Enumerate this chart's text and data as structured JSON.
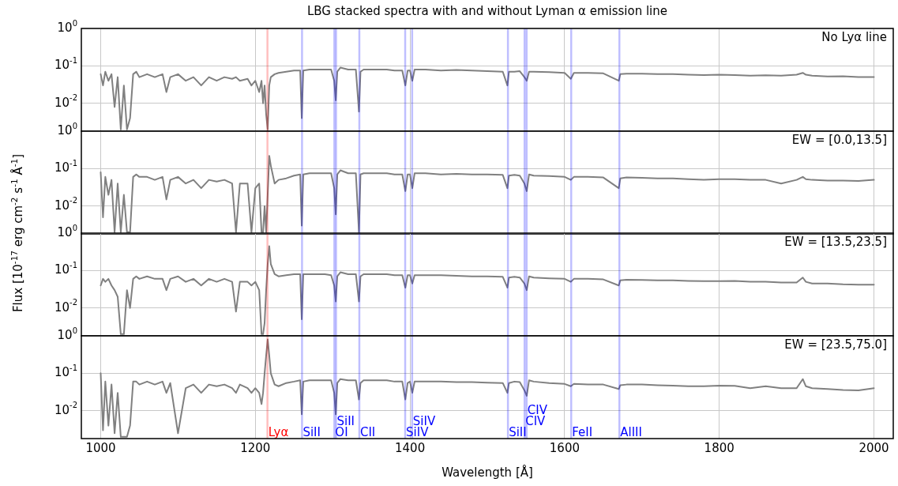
{
  "chart_data": [
    {
      "type": "line",
      "title": "LBG stacked spectra with and without Lyman α emission line",
      "ylabel": "Flux [10$^{-17}$ erg cm$^{-2}$ s$^{-1}$ Å$^{-1}$]",
      "annotations": [
        "No Lyα line"
      ],
      "tick_labels": "y",
      "log": true,
      "grid": true,
      "marker": "none",
      "xlim": [
        975,
        2025
      ],
      "xticks": [
        1000,
        1200,
        1400,
        1600,
        1800,
        2000
      ],
      "ylim": [
        0.0018,
        1
      ],
      "yticks": [
        {
          "value": 1,
          "label": "10$^{0}$"
        },
        {
          "value": 0.1,
          "label": "10$^{-1}$"
        },
        {
          "value": 0.01,
          "label": "10$^{-2}$"
        }
      ],
      "x": [
        1000,
        1003,
        1006,
        1010,
        1014,
        1018,
        1022,
        1026,
        1030,
        1034,
        1038,
        1042,
        1046,
        1050,
        1060,
        1070,
        1080,
        1085,
        1090,
        1100,
        1110,
        1120,
        1130,
        1140,
        1150,
        1160,
        1170,
        1175,
        1180,
        1190,
        1195,
        1200,
        1205,
        1208,
        1210,
        1212,
        1214,
        1216,
        1218,
        1220,
        1225,
        1230,
        1240,
        1250,
        1258,
        1260,
        1262,
        1270,
        1280,
        1290,
        1298,
        1302,
        1304,
        1306,
        1310,
        1320,
        1330,
        1334,
        1336,
        1340,
        1350,
        1360,
        1370,
        1380,
        1390,
        1394,
        1397,
        1400,
        1403,
        1406,
        1420,
        1440,
        1460,
        1480,
        1500,
        1520,
        1526,
        1528,
        1535,
        1542,
        1548,
        1551,
        1554,
        1560,
        1580,
        1600,
        1608,
        1612,
        1630,
        1650,
        1670,
        1672,
        1680,
        1700,
        1720,
        1740,
        1760,
        1780,
        1800,
        1820,
        1840,
        1860,
        1880,
        1900,
        1908,
        1912,
        1920,
        1940,
        1960,
        1980,
        2000
      ],
      "series": [
        {
          "color": "#808080",
          "values": [
            0.06,
            0.03,
            0.07,
            0.04,
            0.06,
            0.008,
            0.05,
            0.002,
            0.03,
            0.002,
            0.004,
            0.06,
            0.07,
            0.05,
            0.06,
            0.05,
            0.06,
            0.02,
            0.05,
            0.06,
            0.04,
            0.05,
            0.03,
            0.05,
            0.04,
            0.05,
            0.045,
            0.05,
            0.04,
            0.045,
            0.03,
            0.04,
            0.02,
            0.04,
            0.01,
            0.03,
            0.005,
            0.002,
            0.03,
            0.05,
            0.06,
            0.065,
            0.07,
            0.075,
            0.075,
            0.004,
            0.075,
            0.08,
            0.08,
            0.08,
            0.08,
            0.04,
            0.012,
            0.07,
            0.09,
            0.08,
            0.08,
            0.006,
            0.07,
            0.08,
            0.08,
            0.08,
            0.08,
            0.075,
            0.075,
            0.03,
            0.075,
            0.075,
            0.04,
            0.08,
            0.08,
            0.075,
            0.078,
            0.075,
            0.072,
            0.07,
            0.03,
            0.07,
            0.07,
            0.072,
            0.05,
            0.04,
            0.07,
            0.07,
            0.068,
            0.065,
            0.045,
            0.065,
            0.065,
            0.063,
            0.04,
            0.06,
            0.062,
            0.062,
            0.06,
            0.06,
            0.058,
            0.057,
            0.058,
            0.057,
            0.055,
            0.056,
            0.055,
            0.058,
            0.065,
            0.058,
            0.055,
            0.052,
            0.053,
            0.05,
            0.05
          ]
        }
      ],
      "ref_lines": [
        {
          "axis": "x",
          "value": 1215.67,
          "color": "#ff0000"
        },
        {
          "axis": "x",
          "value": 1260.4,
          "color": "#0000ff"
        },
        {
          "axis": "x",
          "value": 1302.2,
          "color": "#0000ff"
        },
        {
          "axis": "x",
          "value": 1304.4,
          "color": "#0000ff"
        },
        {
          "axis": "x",
          "value": 1334.5,
          "color": "#0000ff"
        },
        {
          "axis": "x",
          "value": 1393.8,
          "color": "#0000ff"
        },
        {
          "axis": "x",
          "value": 1402.8,
          "color": "#0000ff"
        },
        {
          "axis": "x",
          "value": 1526.7,
          "color": "#0000ff"
        },
        {
          "axis": "x",
          "value": 1548.2,
          "color": "#0000ff"
        },
        {
          "axis": "x",
          "value": 1550.8,
          "color": "#0000ff"
        },
        {
          "axis": "x",
          "value": 1608.5,
          "color": "#0000ff"
        },
        {
          "axis": "x",
          "value": 1670.8,
          "color": "#0000ff"
        }
      ]
    },
    {
      "type": "line",
      "annotations": [
        "EW = [0.0,13.5]"
      ],
      "tick_labels": "y",
      "log": true,
      "grid": true,
      "marker": "none",
      "xlim": [
        975,
        2025
      ],
      "xticks": [
        1000,
        1200,
        1400,
        1600,
        1800,
        2000
      ],
      "ylim": [
        0.0018,
        1
      ],
      "yticks": [
        {
          "value": 1,
          "label": "10$^{0}$"
        },
        {
          "value": 0.1,
          "label": "10$^{-1}$"
        },
        {
          "value": 0.01,
          "label": "10$^{-2}$"
        }
      ],
      "x": [
        1000,
        1003,
        1006,
        1010,
        1014,
        1018,
        1022,
        1026,
        1030,
        1034,
        1038,
        1042,
        1046,
        1050,
        1060,
        1070,
        1080,
        1085,
        1090,
        1100,
        1110,
        1120,
        1130,
        1140,
        1150,
        1160,
        1170,
        1175,
        1180,
        1190,
        1195,
        1200,
        1205,
        1208,
        1210,
        1212,
        1214,
        1216,
        1218,
        1220,
        1225,
        1230,
        1240,
        1250,
        1258,
        1260,
        1262,
        1270,
        1280,
        1290,
        1298,
        1302,
        1304,
        1306,
        1310,
        1320,
        1330,
        1334,
        1336,
        1340,
        1350,
        1360,
        1370,
        1380,
        1390,
        1394,
        1397,
        1400,
        1403,
        1406,
        1420,
        1440,
        1460,
        1480,
        1500,
        1520,
        1526,
        1528,
        1535,
        1542,
        1548,
        1551,
        1554,
        1560,
        1580,
        1600,
        1608,
        1612,
        1630,
        1650,
        1670,
        1672,
        1680,
        1700,
        1720,
        1740,
        1760,
        1780,
        1800,
        1820,
        1840,
        1860,
        1880,
        1900,
        1908,
        1912,
        1920,
        1940,
        1960,
        1980,
        2000
      ],
      "series": [
        {
          "color": "#808080",
          "values": [
            0.08,
            0.005,
            0.06,
            0.02,
            0.05,
            0.002,
            0.04,
            0.002,
            0.02,
            0.002,
            0.002,
            0.06,
            0.07,
            0.06,
            0.06,
            0.05,
            0.06,
            0.015,
            0.05,
            0.06,
            0.04,
            0.05,
            0.03,
            0.05,
            0.045,
            0.05,
            0.04,
            0.002,
            0.04,
            0.04,
            0.002,
            0.03,
            0.04,
            0.002,
            0.002,
            0.01,
            0.002,
            0.02,
            0.22,
            0.12,
            0.04,
            0.05,
            0.055,
            0.065,
            0.07,
            0.003,
            0.07,
            0.075,
            0.075,
            0.075,
            0.075,
            0.03,
            0.006,
            0.07,
            0.09,
            0.075,
            0.075,
            0.002,
            0.07,
            0.075,
            0.075,
            0.075,
            0.075,
            0.07,
            0.07,
            0.025,
            0.07,
            0.07,
            0.03,
            0.075,
            0.075,
            0.07,
            0.072,
            0.07,
            0.07,
            0.068,
            0.03,
            0.065,
            0.068,
            0.065,
            0.04,
            0.025,
            0.07,
            0.065,
            0.063,
            0.06,
            0.05,
            0.06,
            0.06,
            0.058,
            0.03,
            0.055,
            0.058,
            0.057,
            0.055,
            0.055,
            0.052,
            0.05,
            0.052,
            0.052,
            0.05,
            0.05,
            0.04,
            0.05,
            0.06,
            0.052,
            0.05,
            0.048,
            0.048,
            0.047,
            0.05
          ]
        }
      ],
      "ref_lines": [
        {
          "axis": "x",
          "value": 1215.67,
          "color": "#ff0000"
        },
        {
          "axis": "x",
          "value": 1260.4,
          "color": "#0000ff"
        },
        {
          "axis": "x",
          "value": 1302.2,
          "color": "#0000ff"
        },
        {
          "axis": "x",
          "value": 1304.4,
          "color": "#0000ff"
        },
        {
          "axis": "x",
          "value": 1334.5,
          "color": "#0000ff"
        },
        {
          "axis": "x",
          "value": 1393.8,
          "color": "#0000ff"
        },
        {
          "axis": "x",
          "value": 1402.8,
          "color": "#0000ff"
        },
        {
          "axis": "x",
          "value": 1526.7,
          "color": "#0000ff"
        },
        {
          "axis": "x",
          "value": 1548.2,
          "color": "#0000ff"
        },
        {
          "axis": "x",
          "value": 1550.8,
          "color": "#0000ff"
        },
        {
          "axis": "x",
          "value": 1608.5,
          "color": "#0000ff"
        },
        {
          "axis": "x",
          "value": 1670.8,
          "color": "#0000ff"
        }
      ]
    },
    {
      "type": "line",
      "annotations": [
        "EW = [13.5,23.5]"
      ],
      "tick_labels": "y",
      "log": true,
      "grid": true,
      "marker": "none",
      "xlim": [
        975,
        2025
      ],
      "xticks": [
        1000,
        1200,
        1400,
        1600,
        1800,
        2000
      ],
      "ylim": [
        0.0018,
        1
      ],
      "yticks": [
        {
          "value": 1,
          "label": "10$^{0}$"
        },
        {
          "value": 0.1,
          "label": "10$^{-1}$"
        },
        {
          "value": 0.01,
          "label": "10$^{-2}$"
        }
      ],
      "x": [
        1000,
        1003,
        1006,
        1010,
        1014,
        1018,
        1022,
        1026,
        1030,
        1034,
        1038,
        1042,
        1046,
        1050,
        1060,
        1070,
        1080,
        1085,
        1090,
        1100,
        1110,
        1120,
        1130,
        1140,
        1150,
        1160,
        1170,
        1175,
        1180,
        1190,
        1195,
        1200,
        1205,
        1208,
        1210,
        1212,
        1214,
        1216,
        1218,
        1220,
        1225,
        1230,
        1240,
        1250,
        1258,
        1260,
        1262,
        1270,
        1280,
        1290,
        1298,
        1302,
        1304,
        1306,
        1310,
        1320,
        1330,
        1334,
        1336,
        1340,
        1350,
        1360,
        1370,
        1380,
        1390,
        1394,
        1397,
        1400,
        1403,
        1406,
        1420,
        1440,
        1460,
        1480,
        1500,
        1520,
        1526,
        1528,
        1535,
        1542,
        1548,
        1551,
        1554,
        1560,
        1580,
        1600,
        1608,
        1612,
        1630,
        1650,
        1670,
        1672,
        1680,
        1700,
        1720,
        1740,
        1760,
        1780,
        1800,
        1820,
        1840,
        1860,
        1880,
        1900,
        1908,
        1912,
        1920,
        1940,
        1960,
        1980,
        2000
      ],
      "series": [
        {
          "color": "#808080",
          "values": [
            0.04,
            0.06,
            0.05,
            0.06,
            0.04,
            0.03,
            0.02,
            0.002,
            0.002,
            0.03,
            0.01,
            0.06,
            0.07,
            0.06,
            0.07,
            0.06,
            0.06,
            0.03,
            0.06,
            0.07,
            0.05,
            0.06,
            0.04,
            0.06,
            0.05,
            0.06,
            0.05,
            0.008,
            0.05,
            0.05,
            0.04,
            0.05,
            0.03,
            0.002,
            0.002,
            0.004,
            0.03,
            0.15,
            0.45,
            0.15,
            0.08,
            0.07,
            0.075,
            0.08,
            0.08,
            0.005,
            0.08,
            0.08,
            0.08,
            0.08,
            0.075,
            0.04,
            0.015,
            0.07,
            0.09,
            0.08,
            0.08,
            0.015,
            0.07,
            0.08,
            0.08,
            0.08,
            0.08,
            0.075,
            0.075,
            0.035,
            0.075,
            0.075,
            0.045,
            0.075,
            0.075,
            0.075,
            0.072,
            0.07,
            0.07,
            0.068,
            0.035,
            0.065,
            0.068,
            0.065,
            0.045,
            0.03,
            0.07,
            0.065,
            0.062,
            0.06,
            0.05,
            0.06,
            0.06,
            0.058,
            0.04,
            0.055,
            0.057,
            0.056,
            0.055,
            0.055,
            0.053,
            0.052,
            0.052,
            0.053,
            0.05,
            0.05,
            0.048,
            0.048,
            0.065,
            0.05,
            0.045,
            0.045,
            0.043,
            0.042,
            0.042
          ]
        }
      ],
      "ref_lines": [
        {
          "axis": "x",
          "value": 1215.67,
          "color": "#ff0000"
        },
        {
          "axis": "x",
          "value": 1260.4,
          "color": "#0000ff"
        },
        {
          "axis": "x",
          "value": 1302.2,
          "color": "#0000ff"
        },
        {
          "axis": "x",
          "value": 1304.4,
          "color": "#0000ff"
        },
        {
          "axis": "x",
          "value": 1334.5,
          "color": "#0000ff"
        },
        {
          "axis": "x",
          "value": 1393.8,
          "color": "#0000ff"
        },
        {
          "axis": "x",
          "value": 1402.8,
          "color": "#0000ff"
        },
        {
          "axis": "x",
          "value": 1526.7,
          "color": "#0000ff"
        },
        {
          "axis": "x",
          "value": 1548.2,
          "color": "#0000ff"
        },
        {
          "axis": "x",
          "value": 1550.8,
          "color": "#0000ff"
        },
        {
          "axis": "x",
          "value": 1608.5,
          "color": "#0000ff"
        },
        {
          "axis": "x",
          "value": 1670.8,
          "color": "#0000ff"
        }
      ]
    },
    {
      "type": "line",
      "xlabel": "Wavelength [Å]",
      "annotations": [
        "EW = [23.5,75.0]"
      ],
      "log": true,
      "grid": true,
      "marker": "none",
      "xlim": [
        975,
        2025
      ],
      "xticks": [
        1000,
        1200,
        1400,
        1600,
        1800,
        2000
      ],
      "ylim": [
        0.0018,
        1
      ],
      "yticks": [
        {
          "value": 1,
          "label": "10$^{0}$"
        },
        {
          "value": 0.1,
          "label": "10$^{-1}$"
        },
        {
          "value": 0.01,
          "label": "10$^{-2}$"
        }
      ],
      "x": [
        1000,
        1003,
        1006,
        1010,
        1014,
        1018,
        1022,
        1026,
        1030,
        1034,
        1038,
        1042,
        1046,
        1050,
        1060,
        1070,
        1080,
        1085,
        1090,
        1100,
        1110,
        1120,
        1130,
        1140,
        1150,
        1160,
        1170,
        1175,
        1180,
        1190,
        1195,
        1200,
        1205,
        1208,
        1210,
        1212,
        1214,
        1216,
        1218,
        1220,
        1225,
        1230,
        1240,
        1250,
        1258,
        1260,
        1262,
        1270,
        1280,
        1290,
        1298,
        1302,
        1304,
        1306,
        1310,
        1320,
        1330,
        1334,
        1336,
        1340,
        1350,
        1360,
        1370,
        1380,
        1390,
        1394,
        1397,
        1400,
        1403,
        1406,
        1420,
        1440,
        1460,
        1480,
        1500,
        1520,
        1526,
        1528,
        1535,
        1542,
        1548,
        1551,
        1554,
        1560,
        1580,
        1600,
        1608,
        1612,
        1630,
        1650,
        1670,
        1672,
        1680,
        1700,
        1720,
        1740,
        1760,
        1780,
        1800,
        1820,
        1840,
        1860,
        1880,
        1900,
        1908,
        1912,
        1920,
        1940,
        1960,
        1980,
        2000
      ],
      "series": [
        {
          "color": "#808080",
          "values": [
            0.1,
            0.003,
            0.06,
            0.004,
            0.05,
            0.0025,
            0.03,
            0.002,
            0.002,
            0.002,
            0.004,
            0.06,
            0.06,
            0.05,
            0.06,
            0.05,
            0.06,
            0.03,
            0.055,
            0.0025,
            0.04,
            0.05,
            0.03,
            0.05,
            0.045,
            0.05,
            0.04,
            0.03,
            0.05,
            0.04,
            0.03,
            0.04,
            0.03,
            0.015,
            0.03,
            0.1,
            0.3,
            0.8,
            0.3,
            0.1,
            0.05,
            0.045,
            0.055,
            0.06,
            0.065,
            0.008,
            0.06,
            0.065,
            0.065,
            0.065,
            0.065,
            0.03,
            0.008,
            0.055,
            0.07,
            0.065,
            0.065,
            0.02,
            0.055,
            0.065,
            0.065,
            0.065,
            0.065,
            0.06,
            0.06,
            0.02,
            0.055,
            0.06,
            0.03,
            0.06,
            0.06,
            0.06,
            0.058,
            0.058,
            0.056,
            0.055,
            0.03,
            0.055,
            0.06,
            0.058,
            0.035,
            0.025,
            0.065,
            0.06,
            0.055,
            0.052,
            0.045,
            0.052,
            0.05,
            0.05,
            0.038,
            0.048,
            0.05,
            0.05,
            0.048,
            0.047,
            0.045,
            0.045,
            0.047,
            0.046,
            0.04,
            0.045,
            0.04,
            0.04,
            0.07,
            0.045,
            0.04,
            0.038,
            0.036,
            0.035,
            0.04
          ]
        }
      ],
      "ref_lines": [
        {
          "axis": "x",
          "value": 1215.67,
          "color": "#ff0000",
          "label": "Lyα"
        },
        {
          "axis": "x",
          "value": 1260.4,
          "color": "#0000ff",
          "label": "SiII"
        },
        {
          "axis": "x",
          "value": 1302.2,
          "color": "#0000ff",
          "label": "OI"
        },
        {
          "axis": "x",
          "value": 1304.4,
          "color": "#0000ff",
          "label": "SiII"
        },
        {
          "axis": "x",
          "value": 1334.5,
          "color": "#0000ff",
          "label": "CII"
        },
        {
          "axis": "x",
          "value": 1393.8,
          "color": "#0000ff",
          "label": "SiIV"
        },
        {
          "axis": "x",
          "value": 1402.8,
          "color": "#0000ff",
          "label": "SiIV"
        },
        {
          "axis": "x",
          "value": 1526.7,
          "color": "#0000ff",
          "label": "SiII"
        },
        {
          "axis": "x",
          "value": 1548.2,
          "color": "#0000ff",
          "label": "CIV"
        },
        {
          "axis": "x",
          "value": 1550.8,
          "color": "#0000ff",
          "label": "CIV"
        },
        {
          "axis": "x",
          "value": 1608.5,
          "color": "#0000ff",
          "label": "FeII"
        },
        {
          "axis": "x",
          "value": 1670.8,
          "color": "#0000ff",
          "label": "AlIII"
        }
      ]
    }
  ]
}
